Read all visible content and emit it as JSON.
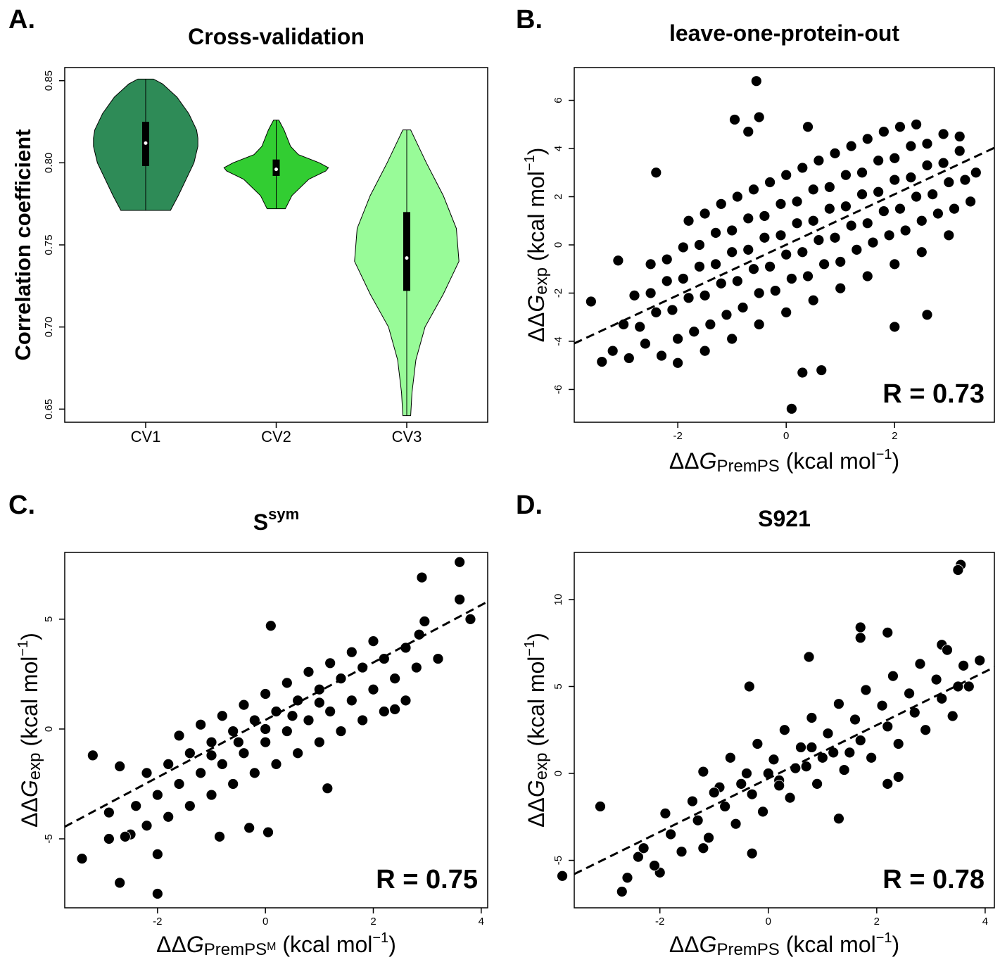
{
  "chart_data": [
    {
      "type": "violin",
      "panel_label": "A.",
      "title": "Cross-validation",
      "y_label": "Correlation coefficient",
      "categories": [
        "CV1",
        "CV2",
        "CV3"
      ],
      "violins": [
        {
          "color": "#2e8b57",
          "min": 0.771,
          "q1": 0.798,
          "median": 0.812,
          "q3": 0.825,
          "max": 0.851,
          "density": {
            "y": [
              0.771,
              0.78,
              0.79,
              0.8,
              0.81,
              0.815,
              0.82,
              0.83,
              0.84,
              0.848,
              0.851
            ],
            "width": [
              0.19,
              0.25,
              0.31,
              0.37,
              0.4,
              0.4,
              0.39,
              0.33,
              0.24,
              0.13,
              0.06
            ]
          }
        },
        {
          "color": "#32cd32",
          "min": 0.772,
          "q1": 0.792,
          "median": 0.796,
          "q3": 0.802,
          "max": 0.826,
          "density": {
            "y": [
              0.772,
              0.78,
              0.79,
              0.795,
              0.797,
              0.8,
              0.805,
              0.81,
              0.82,
              0.826
            ],
            "width": [
              0.07,
              0.12,
              0.25,
              0.38,
              0.4,
              0.33,
              0.17,
              0.11,
              0.06,
              0.02
            ]
          }
        },
        {
          "color": "#98fb98",
          "min": 0.646,
          "q1": 0.722,
          "median": 0.742,
          "q3": 0.77,
          "max": 0.82,
          "density": {
            "y": [
              0.646,
              0.66,
              0.68,
              0.7,
              0.72,
              0.74,
              0.76,
              0.78,
              0.8,
              0.815,
              0.82
            ],
            "width": [
              0.03,
              0.04,
              0.07,
              0.14,
              0.28,
              0.4,
              0.38,
              0.28,
              0.15,
              0.06,
              0.03
            ]
          }
        }
      ],
      "ylim": [
        0.642,
        0.858
      ],
      "yticks": [
        0.65,
        {
          "value": 0.7,
          "label": "0.70"
        },
        0.75,
        {
          "value": 0.8,
          "label": "0.80"
        },
        0.85
      ]
    },
    {
      "type": "scatter",
      "panel_label": "B.",
      "title": "leave-one-protein-out",
      "x_label": {
        "delta": "ΔΔ",
        "var": "G",
        "sub": "PremPS",
        "unit": " (kcal mol",
        "exp": "−1",
        "close": ")"
      },
      "y_label": {
        "delta": "ΔΔ",
        "var": "G",
        "sub": "exp",
        "unit": " (kcal mol",
        "exp": "−1",
        "close": ")"
      },
      "annotation": "R = 0.73",
      "color": "#000000",
      "x": [
        -3.2,
        -2.9,
        -2.6,
        -2.3,
        -2.0,
        -1.7,
        -1.4,
        -1.1,
        -0.8,
        -0.5,
        -0.2,
        0.1,
        0.4,
        0.7,
        1.0,
        1.3,
        1.6,
        1.9,
        2.2,
        2.5,
        2.8,
        3.1,
        3.4,
        -3.0,
        -2.7,
        -2.4,
        -2.1,
        -1.8,
        -1.5,
        -1.2,
        -0.9,
        -0.6,
        -0.3,
        0.0,
        0.3,
        0.6,
        0.9,
        1.2,
        1.5,
        1.8,
        2.1,
        2.4,
        2.7,
        3.0,
        3.3,
        -2.8,
        -2.5,
        -2.2,
        -1.9,
        -1.6,
        -1.3,
        -1.0,
        -0.7,
        -0.4,
        -0.1,
        0.2,
        0.5,
        0.8,
        1.1,
        1.4,
        1.7,
        2.0,
        2.3,
        2.6,
        2.9,
        3.2,
        -2.5,
        -2.2,
        -1.9,
        -1.6,
        -1.3,
        -1.0,
        -0.7,
        -0.4,
        -0.1,
        0.2,
        0.5,
        0.8,
        1.1,
        1.4,
        1.7,
        2.0,
        2.3,
        2.6,
        2.9,
        3.2,
        -1.8,
        -1.5,
        -1.2,
        -0.9,
        -0.6,
        -0.3,
        0.0,
        0.3,
        0.6,
        0.9,
        1.2,
        1.5,
        1.8,
        2.1,
        2.4,
        -2.0,
        -1.5,
        -1.0,
        -0.5,
        0.0,
        0.5,
        1.0,
        1.5,
        2.0,
        2.5,
        3.0,
        -0.55,
        -0.95,
        -0.5,
        -2.4,
        0.1,
        0.3,
        0.65,
        -3.6,
        -3.4,
        -3.1,
        2.0,
        2.6,
        3.5,
        -0.7,
        0.4
      ],
      "values": [
        -4.4,
        -4.7,
        -4.1,
        -4.6,
        -3.9,
        -3.6,
        -3.3,
        -2.9,
        -2.6,
        -2.0,
        -1.9,
        -1.4,
        -1.3,
        -0.8,
        -0.7,
        -0.2,
        0.1,
        0.4,
        0.6,
        1.0,
        1.3,
        1.5,
        1.8,
        -3.3,
        -3.4,
        -2.8,
        -2.7,
        -2.2,
        -2.1,
        -1.6,
        -1.5,
        -1.0,
        -0.9,
        -0.4,
        -0.3,
        0.2,
        0.3,
        0.8,
        0.9,
        1.4,
        1.5,
        2.0,
        2.1,
        2.6,
        2.7,
        -2.1,
        -2.0,
        -1.5,
        -1.4,
        -0.9,
        -0.8,
        -0.3,
        -0.2,
        0.3,
        0.4,
        0.9,
        1.0,
        1.5,
        1.6,
        2.1,
        2.2,
        2.7,
        2.8,
        3.3,
        3.4,
        3.9,
        -0.8,
        -0.6,
        -0.1,
        0.0,
        0.5,
        0.6,
        1.1,
        1.2,
        1.7,
        1.8,
        2.3,
        2.4,
        2.9,
        3.0,
        3.5,
        3.6,
        4.1,
        4.2,
        4.6,
        4.5,
        1.0,
        1.3,
        1.7,
        2.0,
        2.3,
        2.6,
        2.9,
        3.2,
        3.5,
        3.8,
        4.1,
        4.4,
        4.7,
        4.9,
        5.0,
        -4.9,
        -4.4,
        -3.9,
        -3.3,
        -2.8,
        -2.3,
        -1.8,
        -1.3,
        -0.8,
        -0.3,
        0.4,
        6.8,
        5.2,
        5.3,
        3.0,
        -6.8,
        -5.3,
        -5.2,
        -2.35,
        -4.85,
        -0.65,
        -3.4,
        -2.9,
        3.0,
        4.7,
        4.9
      ],
      "fit_line": {
        "x": [
          -3.91,
          3.84
        ],
        "y": [
          -4.09,
          4.03
        ]
      },
      "xlim": [
        -3.91,
        3.84
      ],
      "ylim": [
        -7.36,
        7.36
      ],
      "xticks": [
        -2,
        0,
        2
      ],
      "yticks": [
        -6,
        -4,
        -2,
        0,
        2,
        4,
        6
      ]
    },
    {
      "type": "scatter",
      "panel_label": "C.",
      "title": "S",
      "title_sup": "sym",
      "x_label": {
        "delta": "ΔΔ",
        "var": "G",
        "sub": "PremPS",
        "sub_sup": "M",
        "unit": " (kcal mol",
        "exp": "−1",
        "close": ")"
      },
      "y_label": {
        "delta": "ΔΔ",
        "var": "G",
        "sub": "exp",
        "unit": " (kcal mol",
        "exp": "−1",
        "close": ")"
      },
      "annotation": "R = 0.75",
      "color": "#000000",
      "x": [
        -3.4,
        -3.2,
        -2.7,
        -2.0,
        -2.0,
        3.6,
        2.9,
        3.6,
        3.8,
        2.95,
        2.85,
        0.1,
        0.05,
        -0.3,
        1.15,
        -0.85,
        -2.9,
        -2.9,
        -2.5,
        -2.7,
        2.4,
        -2.6,
        -2.2,
        -1.8,
        -1.4,
        -1.0,
        -0.6,
        -0.2,
        0.2,
        0.6,
        1.0,
        1.4,
        1.8,
        2.2,
        2.6,
        -2.4,
        -2.0,
        -1.6,
        -1.2,
        -0.8,
        -0.4,
        0.0,
        0.4,
        0.8,
        1.2,
        1.6,
        2.0,
        2.4,
        2.8,
        3.2,
        -2.2,
        -1.8,
        -1.4,
        -1.0,
        -0.6,
        -0.2,
        0.2,
        0.6,
        1.0,
        1.4,
        1.8,
        2.2,
        2.6,
        -1.6,
        -1.2,
        -0.8,
        -0.4,
        0.0,
        0.4,
        0.8,
        1.2,
        1.6,
        2.0,
        -1.0,
        -0.5,
        0.0,
        0.5,
        1.0
      ],
      "values": [
        -5.9,
        -1.2,
        -7.0,
        -7.5,
        -5.7,
        7.6,
        6.9,
        5.9,
        5.0,
        4.9,
        4.3,
        4.7,
        -4.7,
        -4.5,
        -2.7,
        -4.9,
        -5.0,
        -3.8,
        -4.8,
        -1.7,
        0.9,
        -4.9,
        -4.4,
        -4.0,
        -3.5,
        -3.0,
        -2.5,
        -2.0,
        -1.6,
        -1.1,
        -0.6,
        -0.1,
        0.4,
        0.8,
        1.3,
        -3.5,
        -3.0,
        -2.5,
        -2.0,
        -1.6,
        -1.1,
        -0.6,
        -0.1,
        0.4,
        0.8,
        1.3,
        1.8,
        2.3,
        2.8,
        3.2,
        -2.0,
        -1.6,
        -1.1,
        -0.6,
        -0.1,
        0.4,
        0.8,
        1.3,
        1.8,
        2.3,
        2.8,
        3.2,
        3.7,
        -0.3,
        0.2,
        0.6,
        1.1,
        1.6,
        2.1,
        2.6,
        3.0,
        3.5,
        4.0,
        -1.2,
        -0.6,
        0.0,
        0.6,
        1.2
      ],
      "fit_line": {
        "x": [
          -3.72,
          4.12
        ],
        "y": [
          -4.45,
          5.8
        ]
      },
      "xlim": [
        -3.72,
        4.12
      ],
      "ylim": [
        -8.14,
        8.04
      ],
      "xticks": [
        -2,
        0,
        2,
        4
      ],
      "yticks": [
        -5,
        0,
        5
      ]
    },
    {
      "type": "scatter",
      "panel_label": "D.",
      "title": "S921",
      "x_label": {
        "delta": "ΔΔ",
        "var": "G",
        "sub": "PremPS",
        "unit": " (kcal mol",
        "exp": "−1",
        "close": ")"
      },
      "y_label": {
        "delta": "ΔΔ",
        "var": "G",
        "sub": "exp",
        "unit": " (kcal mol",
        "exp": "−1",
        "close": ")"
      },
      "annotation": "R = 0.78",
      "color": "#000000",
      "x": [
        3.55,
        3.5,
        -3.8,
        -2.7,
        -2.0,
        1.7,
        1.7,
        2.2,
        -0.35,
        0.75,
        -0.3,
        1.3,
        2.2,
        2.4,
        -2.4,
        -3.1,
        -1.2,
        3.5,
        3.9,
        3.2,
        -2.6,
        -2.1,
        -1.6,
        -1.1,
        -0.6,
        -0.1,
        0.4,
        0.9,
        1.4,
        1.9,
        2.4,
        2.9,
        3.4,
        -2.3,
        -1.8,
        -1.3,
        -0.8,
        -0.3,
        0.2,
        0.7,
        1.2,
        1.7,
        2.2,
        2.7,
        3.2,
        3.7,
        -1.9,
        -1.4,
        -0.9,
        -0.4,
        0.1,
        0.6,
        1.1,
        1.6,
        2.1,
        2.6,
        3.1,
        3.6,
        -1.2,
        -0.7,
        -0.2,
        0.3,
        0.8,
        1.3,
        1.8,
        2.3,
        2.8,
        3.3,
        -0.5,
        0,
        0.5,
        1.0,
        -1.0,
        0.2,
        0.8,
        1.5
      ],
      "values": [
        12.0,
        11.7,
        -5.9,
        -6.8,
        -5.7,
        8.4,
        7.8,
        8.1,
        5.0,
        6.7,
        -4.6,
        -2.6,
        -0.6,
        -0.2,
        -4.8,
        -1.9,
        -4.3,
        5.0,
        6.5,
        7.4,
        -6.0,
        -5.3,
        -4.5,
        -3.7,
        -2.9,
        -2.2,
        -1.4,
        -0.6,
        0.2,
        0.9,
        1.7,
        2.5,
        3.3,
        -4.3,
        -3.5,
        -2.7,
        -1.9,
        -1.2,
        -0.4,
        0.4,
        1.2,
        1.9,
        2.7,
        3.5,
        4.3,
        5.0,
        -2.3,
        -1.6,
        -0.8,
        0.0,
        0.8,
        1.5,
        2.3,
        3.1,
        3.9,
        4.6,
        5.4,
        6.2,
        0.1,
        0.9,
        1.7,
        2.5,
        3.2,
        4.0,
        4.8,
        5.6,
        6.3,
        7.1,
        -0.6,
        0,
        0.3,
        0.9,
        -1.1,
        -0.7,
        1.5,
        1.2
      ],
      "fit_line": {
        "x": [
          -3.58,
          4.17
        ],
        "y": [
          -5.79,
          6.11
        ]
      },
      "xlim": [
        -3.58,
        4.17
      ],
      "ylim": [
        -7.73,
        12.71
      ],
      "xticks": [
        -2,
        0,
        2,
        4
      ],
      "yticks": [
        -5,
        0,
        5,
        10
      ]
    }
  ]
}
